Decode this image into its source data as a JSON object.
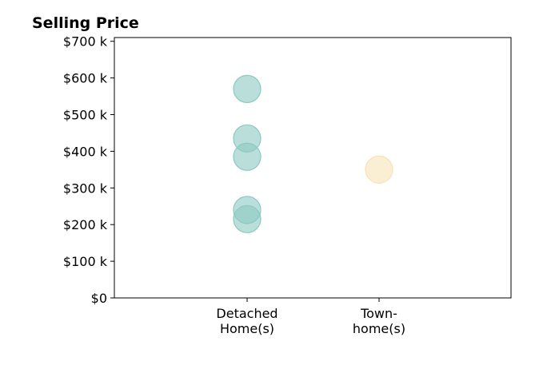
{
  "chart_data": {
    "type": "scatter",
    "title": "Selling Price",
    "xlabel": "",
    "ylabel": "",
    "categories": [
      [
        "Detached",
        "Home(s)"
      ],
      [
        "Town-",
        "home(s)"
      ]
    ],
    "ylim": [
      0,
      710000
    ],
    "y_ticks": [
      0,
      100000,
      200000,
      300000,
      400000,
      500000,
      600000,
      700000
    ],
    "y_tick_labels": [
      "$0",
      "$100 k",
      "$200 k",
      "$300 k",
      "$400 k",
      "$500 k",
      "$600 k",
      "$700 k"
    ],
    "grid": false,
    "legend": "none",
    "series": [
      {
        "category": 0,
        "color": "#8cc9c2",
        "values": [
          570000,
          435000,
          385000,
          240000,
          215000
        ]
      },
      {
        "category": 1,
        "color": "#f7e3b6",
        "values": [
          350000
        ]
      }
    ]
  }
}
